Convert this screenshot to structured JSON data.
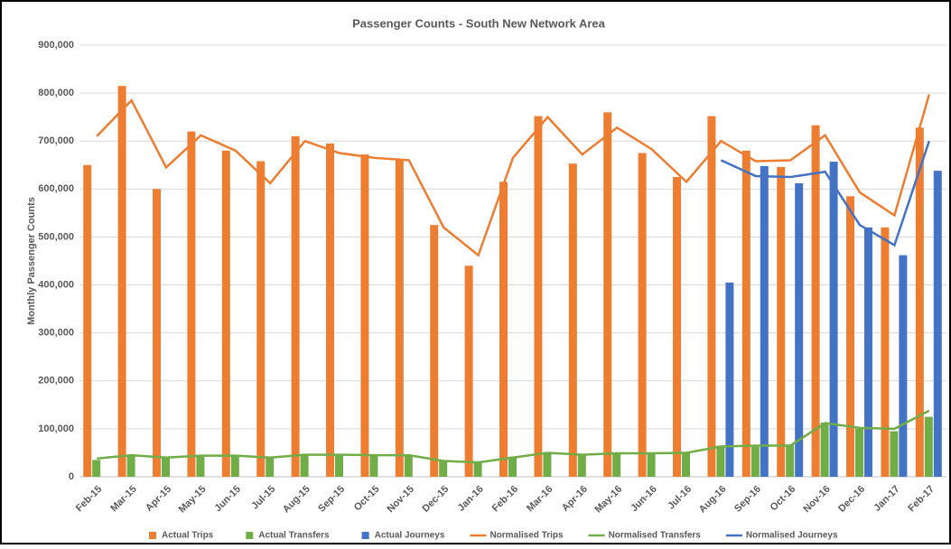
{
  "chart_data": {
    "type": "bar",
    "title": "Passenger Counts - South New Network Area",
    "y_label": "Monthly Passenger Counts",
    "categories": [
      "Feb-15",
      "Mar-15",
      "Apr-15",
      "May-15",
      "Jun-15",
      "Jul-15",
      "Aug-15",
      "Sep-15",
      "Oct-15",
      "Nov-15",
      "Dec-15",
      "Jan-16",
      "Feb-16",
      "Mar-16",
      "Apr-16",
      "May-16",
      "Jun-16",
      "Jul-16",
      "Aug-16",
      "Sep-16",
      "Oct-16",
      "Nov-16",
      "Dec-16",
      "Jan-17",
      "Feb-17"
    ],
    "series": [
      {
        "name": "Actual Trips",
        "type": "bar",
        "color": "#ed7d31",
        "values": [
          650000,
          815000,
          600000,
          720000,
          680000,
          658000,
          710000,
          695000,
          672000,
          660000,
          525000,
          440000,
          615000,
          752000,
          653000,
          760000,
          675000,
          625000,
          752000,
          680000,
          646000,
          733000,
          585000,
          520000,
          728000
        ]
      },
      {
        "name": "Actual Transfers",
        "type": "bar",
        "color": "#70ad47",
        "values": [
          35000,
          45000,
          40000,
          45000,
          45000,
          40000,
          47000,
          47000,
          45000,
          45000,
          33000,
          30000,
          42000,
          50000,
          47000,
          50000,
          50000,
          52000,
          65000,
          65000,
          67000,
          113000,
          100000,
          95000,
          125000
        ]
      },
      {
        "name": "Actual Journeys",
        "type": "bar",
        "color": "#4472c4",
        "values": [
          null,
          null,
          null,
          null,
          null,
          null,
          null,
          null,
          null,
          null,
          null,
          null,
          null,
          null,
          null,
          null,
          null,
          null,
          405000,
          648000,
          612000,
          657000,
          520000,
          462000,
          638000
        ]
      },
      {
        "name": "Normalised Trips",
        "type": "line",
        "color": "#ed7d31",
        "values": [
          710000,
          785000,
          645000,
          712000,
          680000,
          612000,
          700000,
          675000,
          665000,
          660000,
          520000,
          462000,
          665000,
          750000,
          672000,
          728000,
          683000,
          615000,
          700000,
          658000,
          660000,
          712000,
          593000,
          545000,
          797000
        ]
      },
      {
        "name": "Normalised Transfers",
        "type": "line",
        "color": "#70ad47",
        "values": [
          38000,
          45000,
          40000,
          44000,
          44000,
          40000,
          46000,
          46000,
          45000,
          45000,
          33000,
          30000,
          40000,
          50000,
          46000,
          49000,
          49000,
          50000,
          63000,
          65000,
          65000,
          112000,
          102000,
          100000,
          138000
        ]
      },
      {
        "name": "Normalised Journeys",
        "type": "line",
        "color": "#4472c4",
        "values": [
          null,
          null,
          null,
          null,
          null,
          null,
          null,
          null,
          null,
          null,
          null,
          null,
          null,
          null,
          null,
          null,
          null,
          null,
          660000,
          627000,
          625000,
          636000,
          525000,
          483000,
          700000
        ]
      }
    ],
    "ylim": [
      0,
      900000
    ],
    "yticks": [
      0,
      {
        "value": 100000,
        "label": "100,000"
      },
      {
        "value": 200000,
        "label": "200,000"
      },
      {
        "value": 300000,
        "label": "300,000"
      },
      {
        "value": 400000,
        "label": "400,000"
      },
      {
        "value": 500000,
        "label": "500,000"
      },
      {
        "value": 600000,
        "label": "600,000"
      },
      {
        "value": 700000,
        "label": "700,000"
      },
      {
        "value": 800000,
        "label": "800,000"
      },
      {
        "value": 900000,
        "label": "900,000"
      }
    ],
    "grid": true,
    "legend": "bottom"
  }
}
